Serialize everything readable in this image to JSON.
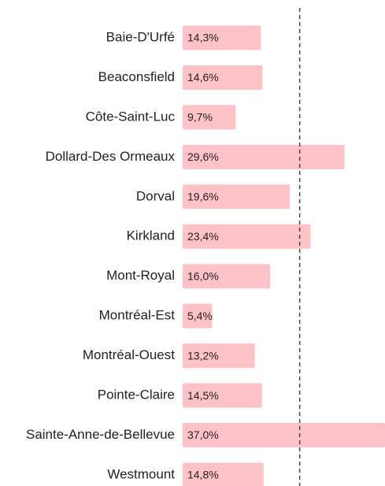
{
  "chart_data": {
    "type": "bar",
    "orientation": "horizontal",
    "categories": [
      "Baie-D'Urfé",
      "Beaconsfield",
      "Côte-Saint-Luc",
      "Dollard-Des Ormeaux",
      "Dorval",
      "Kirkland",
      "Mont-Royal",
      "Montréal-Est",
      "Montréal-Ouest",
      "Pointe-Claire",
      "Sainte-Anne-de-Bellevue",
      "Westmount"
    ],
    "values": [
      14.3,
      14.6,
      9.7,
      29.6,
      19.6,
      23.4,
      16.0,
      5.4,
      13.2,
      14.5,
      37.0,
      14.8
    ],
    "value_labels": [
      "14,3%",
      "14,6%",
      "9,7%",
      "29,6%",
      "19,6%",
      "23,4%",
      "16,0%",
      "5,4%",
      "13,2%",
      "14,5%",
      "37,0%",
      "14,8%"
    ],
    "color": "#ffc2c7",
    "xlim": [
      0,
      37
    ],
    "reference_value": 21.4
  }
}
